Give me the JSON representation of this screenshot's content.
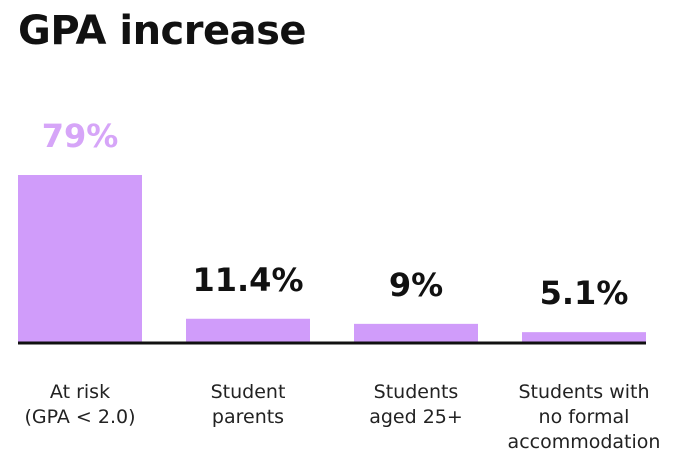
{
  "chart_data": {
    "type": "bar",
    "title": "GPA increase",
    "categories": [
      "At risk\n(GPA < 2.0)",
      "Student\nparents",
      "Students\naged 25+",
      "Students with\nno formal\naccommodation"
    ],
    "values": [
      79,
      11.4,
      9,
      5.1
    ],
    "value_labels": [
      "79%",
      "11.4%",
      "9%",
      "5.1%"
    ],
    "color": "#d09cfa",
    "value_label_colors": [
      "#d6a5f8",
      "#111111",
      "#111111",
      "#111111"
    ]
  }
}
